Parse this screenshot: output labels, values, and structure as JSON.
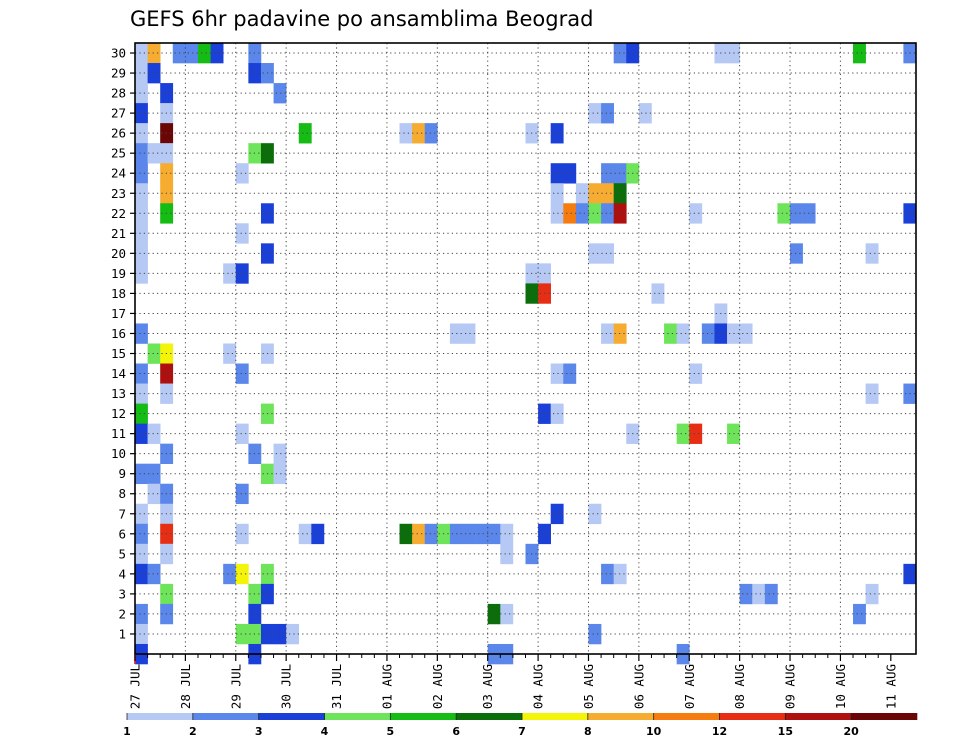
{
  "chart_data": {
    "type": "heatmap",
    "title": "GEFS 6hr padavine po ansamblima Beograd",
    "x_tick_labels": [
      "27 JUL",
      "28 JUL",
      "29 JUL",
      "30 JUL",
      "31 JUL",
      "01 AUG",
      "02 AUG",
      "03 AUG",
      "04 AUG",
      "05 AUG",
      "06 AUG",
      "07 AUG",
      "08 AUG",
      "09 AUG",
      "10 AUG",
      "11 AUG"
    ],
    "y_tick_labels": [
      "1",
      "2",
      "3",
      "4",
      "5",
      "6",
      "7",
      "8",
      "9",
      "10",
      "11",
      "12",
      "13",
      "14",
      "15",
      "16",
      "17",
      "18",
      "19",
      "20",
      "21",
      "22",
      "23",
      "24",
      "25",
      "26",
      "27",
      "28",
      "29",
      "30"
    ],
    "time_step_hours": 6,
    "grid": true,
    "legend": {
      "placement": "bottom",
      "labels": [
        "1",
        "2",
        "3",
        "4",
        "5",
        "6",
        "7",
        "8",
        "10",
        "12",
        "15",
        "20"
      ],
      "colors": [
        "#b6c8f4",
        "#5b86ea",
        "#1a40d8",
        "#6ee45a",
        "#14bc14",
        "#0b6e0b",
        "#f4f40a",
        "#f6ac30",
        "#f67c10",
        "#e62e14",
        "#ae1010",
        "#6a0606"
      ]
    },
    "cells": [
      [
        30,
        0,
        0
      ],
      [
        30,
        1,
        7
      ],
      [
        30,
        3,
        1
      ],
      [
        30,
        4,
        1
      ],
      [
        30,
        5,
        4
      ],
      [
        30,
        6,
        2
      ],
      [
        30,
        9,
        1
      ],
      [
        30,
        38,
        1
      ],
      [
        30,
        39,
        2
      ],
      [
        30,
        46,
        0
      ],
      [
        30,
        47,
        0
      ],
      [
        30,
        57,
        4
      ],
      [
        30,
        61,
        1
      ],
      [
        29,
        0,
        0
      ],
      [
        29,
        1,
        2
      ],
      [
        29,
        9,
        2
      ],
      [
        29,
        10,
        1
      ],
      [
        28,
        0,
        0
      ],
      [
        28,
        2,
        2
      ],
      [
        28,
        11,
        1
      ],
      [
        27,
        0,
        2
      ],
      [
        27,
        2,
        0
      ],
      [
        27,
        36,
        0
      ],
      [
        27,
        37,
        1
      ],
      [
        27,
        40,
        0
      ],
      [
        26,
        0,
        0
      ],
      [
        26,
        2,
        11
      ],
      [
        26,
        13,
        4
      ],
      [
        26,
        21,
        0
      ],
      [
        26,
        22,
        7
      ],
      [
        26,
        23,
        1
      ],
      [
        26,
        31,
        0
      ],
      [
        26,
        33,
        2
      ],
      [
        25,
        0,
        1
      ],
      [
        25,
        1,
        0
      ],
      [
        25,
        2,
        0
      ],
      [
        25,
        9,
        3
      ],
      [
        25,
        10,
        5
      ],
      [
        24,
        0,
        1
      ],
      [
        24,
        2,
        7
      ],
      [
        24,
        8,
        0
      ],
      [
        24,
        33,
        2
      ],
      [
        24,
        34,
        2
      ],
      [
        24,
        37,
        1
      ],
      [
        24,
        38,
        1
      ],
      [
        24,
        39,
        3
      ],
      [
        23,
        0,
        0
      ],
      [
        23,
        2,
        7
      ],
      [
        23,
        33,
        0
      ],
      [
        23,
        35,
        0
      ],
      [
        23,
        36,
        7
      ],
      [
        23,
        37,
        7
      ],
      [
        23,
        38,
        5
      ],
      [
        22,
        0,
        0
      ],
      [
        22,
        2,
        4
      ],
      [
        22,
        10,
        2
      ],
      [
        22,
        33,
        0
      ],
      [
        22,
        34,
        8
      ],
      [
        22,
        35,
        1
      ],
      [
        22,
        36,
        3
      ],
      [
        22,
        37,
        1
      ],
      [
        22,
        38,
        10
      ],
      [
        22,
        44,
        0
      ],
      [
        22,
        51,
        3
      ],
      [
        22,
        52,
        1
      ],
      [
        22,
        53,
        1
      ],
      [
        22,
        61,
        2
      ],
      [
        21,
        0,
        0
      ],
      [
        21,
        8,
        0
      ],
      [
        20,
        0,
        0
      ],
      [
        20,
        10,
        2
      ],
      [
        20,
        36,
        0
      ],
      [
        20,
        37,
        0
      ],
      [
        20,
        52,
        1
      ],
      [
        20,
        58,
        0
      ],
      [
        19,
        0,
        0
      ],
      [
        19,
        7,
        0
      ],
      [
        19,
        8,
        2
      ],
      [
        19,
        31,
        0
      ],
      [
        19,
        32,
        0
      ],
      [
        18,
        31,
        5
      ],
      [
        18,
        32,
        9
      ],
      [
        18,
        41,
        0
      ],
      [
        17,
        46,
        0
      ],
      [
        16,
        0,
        1
      ],
      [
        16,
        25,
        0
      ],
      [
        16,
        26,
        0
      ],
      [
        16,
        37,
        0
      ],
      [
        16,
        38,
        7
      ],
      [
        16,
        42,
        3
      ],
      [
        16,
        43,
        0
      ],
      [
        16,
        45,
        1
      ],
      [
        16,
        46,
        2
      ],
      [
        16,
        47,
        0
      ],
      [
        16,
        48,
        0
      ],
      [
        15,
        1,
        3
      ],
      [
        15,
        2,
        6
      ],
      [
        15,
        7,
        0
      ],
      [
        15,
        10,
        0
      ],
      [
        14,
        0,
        1
      ],
      [
        14,
        2,
        10
      ],
      [
        14,
        8,
        1
      ],
      [
        14,
        33,
        0
      ],
      [
        14,
        34,
        1
      ],
      [
        14,
        44,
        0
      ],
      [
        13,
        0,
        0
      ],
      [
        13,
        2,
        0
      ],
      [
        13,
        58,
        0
      ],
      [
        13,
        61,
        1
      ],
      [
        12,
        0,
        4
      ],
      [
        12,
        10,
        3
      ],
      [
        12,
        32,
        2
      ],
      [
        12,
        33,
        0
      ],
      [
        11,
        0,
        2
      ],
      [
        11,
        1,
        0
      ],
      [
        11,
        8,
        0
      ],
      [
        11,
        39,
        0
      ],
      [
        11,
        43,
        3
      ],
      [
        11,
        44,
        9
      ],
      [
        11,
        47,
        3
      ],
      [
        10,
        2,
        1
      ],
      [
        10,
        9,
        1
      ],
      [
        10,
        11,
        0
      ],
      [
        9,
        0,
        1
      ],
      [
        9,
        1,
        1
      ],
      [
        9,
        10,
        3
      ],
      [
        9,
        11,
        0
      ],
      [
        8,
        1,
        0
      ],
      [
        8,
        2,
        1
      ],
      [
        8,
        8,
        1
      ],
      [
        7,
        0,
        0
      ],
      [
        7,
        2,
        0
      ],
      [
        7,
        33,
        2
      ],
      [
        7,
        36,
        0
      ],
      [
        6,
        0,
        1
      ],
      [
        6,
        2,
        9
      ],
      [
        6,
        8,
        0
      ],
      [
        6,
        13,
        0
      ],
      [
        6,
        14,
        2
      ],
      [
        6,
        21,
        5
      ],
      [
        6,
        22,
        7
      ],
      [
        6,
        23,
        1
      ],
      [
        6,
        24,
        3
      ],
      [
        6,
        25,
        1
      ],
      [
        6,
        26,
        1
      ],
      [
        6,
        27,
        1
      ],
      [
        6,
        28,
        1
      ],
      [
        6,
        29,
        0
      ],
      [
        6,
        32,
        2
      ],
      [
        5,
        0,
        0
      ],
      [
        5,
        2,
        0
      ],
      [
        5,
        29,
        0
      ],
      [
        5,
        31,
        1
      ],
      [
        4,
        0,
        2
      ],
      [
        4,
        1,
        1
      ],
      [
        4,
        7,
        1
      ],
      [
        4,
        8,
        6
      ],
      [
        4,
        10,
        3
      ],
      [
        4,
        37,
        1
      ],
      [
        4,
        38,
        0
      ],
      [
        4,
        61,
        2
      ],
      [
        3,
        2,
        3
      ],
      [
        3,
        9,
        3
      ],
      [
        3,
        10,
        2
      ],
      [
        3,
        48,
        1
      ],
      [
        3,
        49,
        0
      ],
      [
        3,
        50,
        1
      ],
      [
        3,
        58,
        0
      ],
      [
        2,
        0,
        1
      ],
      [
        2,
        2,
        1
      ],
      [
        2,
        9,
        2
      ],
      [
        2,
        28,
        5
      ],
      [
        2,
        29,
        0
      ],
      [
        2,
        57,
        1
      ],
      [
        1,
        0,
        0
      ],
      [
        1,
        8,
        3
      ],
      [
        1,
        9,
        3
      ],
      [
        1,
        10,
        2
      ],
      [
        1,
        11,
        2
      ],
      [
        1,
        12,
        0
      ],
      [
        1,
        36,
        1
      ],
      [
        0,
        0,
        2
      ],
      [
        0,
        9,
        2
      ],
      [
        0,
        28,
        1
      ],
      [
        0,
        29,
        1
      ],
      [
        0,
        43,
        1
      ]
    ]
  }
}
